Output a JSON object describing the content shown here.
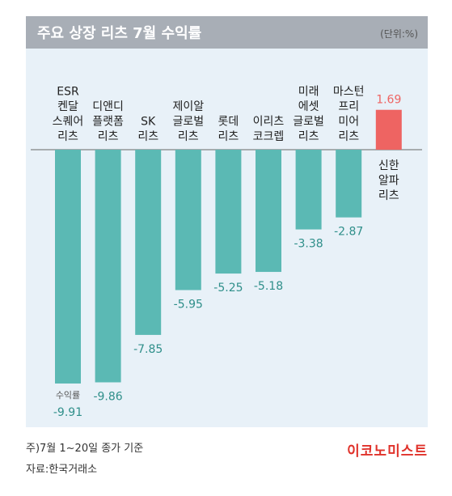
{
  "chart_data": {
    "type": "bar",
    "title": "주요 상장 리츠 7월 수익률",
    "unit": "(단위:%)",
    "value_label": "수익률",
    "categories": [
      [
        "ESR",
        "켄달",
        "스퀘어",
        "리츠"
      ],
      [
        "디앤디",
        "플랫폼",
        "리츠"
      ],
      [
        "SK",
        "리츠"
      ],
      [
        "제이알",
        "글로벌",
        "리츠"
      ],
      [
        "롯데",
        "리츠"
      ],
      [
        "이리츠",
        "코크렙"
      ],
      [
        "미래",
        "에셋",
        "글로벌",
        "리츠"
      ],
      [
        "마스턴",
        "프리",
        "미어",
        "리츠"
      ],
      [
        "신한",
        "알파",
        "리츠"
      ]
    ],
    "values": [
      -9.91,
      -9.86,
      -7.85,
      -5.95,
      -5.25,
      -5.18,
      -3.38,
      -2.87,
      1.69
    ],
    "value_labels": [
      "-9.91",
      "-9.86",
      "-7.85",
      "-5.95",
      "-5.25",
      "-5.18",
      "-3.38",
      "-2.87",
      "1.69"
    ],
    "colors": {
      "negative": "#5bb9b4",
      "positive": "#ee6462",
      "negative_text": "#2f8f8a",
      "positive_text": "#ee6462",
      "panel": "#e8f1f8",
      "title_bar": "#a8aeb6"
    }
  },
  "footer": {
    "note": "주)7월 1~20일 종가 기준",
    "source": "자료:한국거래소",
    "brand": "이코노미스트"
  }
}
